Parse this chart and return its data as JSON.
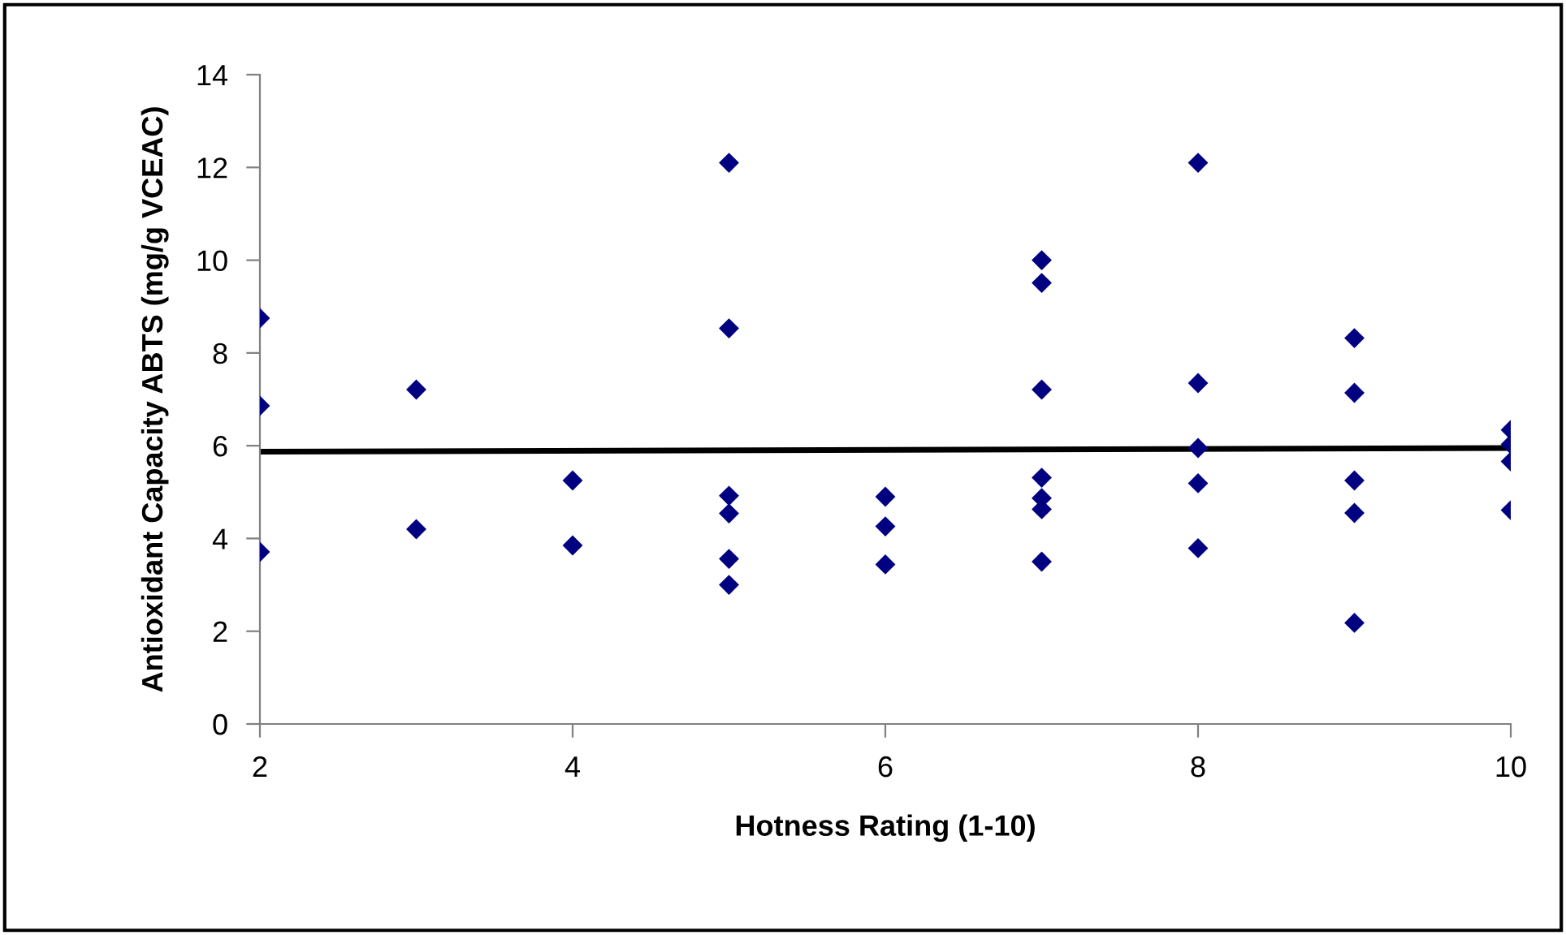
{
  "chart_data": {
    "type": "scatter",
    "xlabel": "Hotness Rating (1-10)",
    "ylabel": "Antioxidant Capacity ABTS (mg/g VCEAC)",
    "xlim": [
      2,
      10
    ],
    "xticks": [
      2,
      4,
      6,
      8,
      10
    ],
    "ylim": [
      0,
      14
    ],
    "yticks": [
      0,
      2,
      4,
      6,
      8,
      10,
      12,
      14
    ],
    "grid": false,
    "legend": false,
    "series": [
      {
        "color": "#000080",
        "marker": "diamond",
        "x": [
          2,
          2,
          2,
          3,
          3,
          4,
          4,
          5,
          5,
          5,
          5,
          5,
          5,
          6,
          6,
          6,
          7,
          7,
          7,
          7,
          7,
          7,
          7,
          8,
          8,
          8,
          8,
          8,
          9,
          9,
          9,
          9,
          9,
          10,
          10,
          10,
          10
        ],
        "values": [
          8.75,
          6.86,
          3.71,
          7.21,
          4.2,
          5.25,
          3.85,
          12.1,
          8.53,
          4.92,
          4.54,
          3.56,
          3.0,
          4.9,
          4.26,
          3.44,
          10.0,
          9.51,
          7.21,
          5.31,
          4.87,
          4.63,
          3.5,
          12.1,
          7.35,
          5.95,
          5.19,
          3.79,
          8.32,
          7.14,
          5.25,
          4.55,
          2.18,
          6.34,
          6.03,
          5.66,
          4.61
        ]
      },
      {
        "type": "line",
        "color": "#000000",
        "marker": "none",
        "line_style": "solid",
        "x": [
          2,
          10
        ],
        "values": [
          5.87,
          5.95
        ]
      }
    ]
  }
}
